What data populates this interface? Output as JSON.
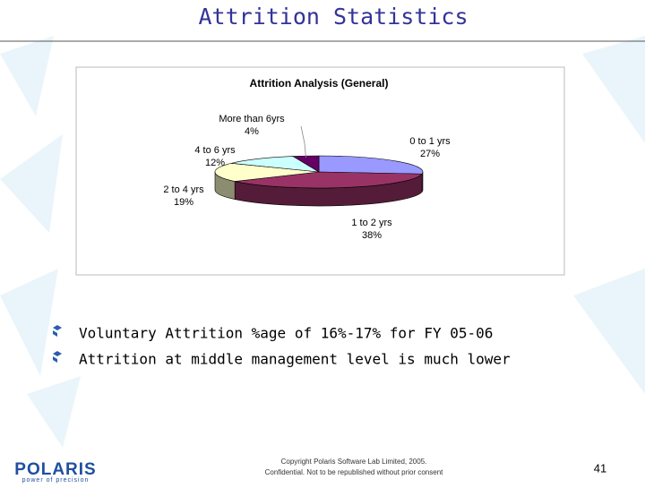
{
  "slide": {
    "title": "Attrition Statistics",
    "bullets": [
      "Voluntary Attrition %age of 16%-17% for FY 05-06",
      "Attrition at middle management level is much lower"
    ],
    "footer": [
      "Copyright Polaris Software Lab Limited, 2005.",
      "Confidential. Not to be republished without prior consent"
    ],
    "page_number": "41",
    "logo": "POLARIS",
    "tagline": "power of precision"
  },
  "chart_data": {
    "type": "pie",
    "title": "Attrition Analysis (General)",
    "categories": [
      "0 to 1 yrs",
      "1 to 2 yrs",
      "2 to 4 yrs",
      "4 to 6 yrs",
      "More than 6yrs"
    ],
    "values": [
      27,
      38,
      19,
      12,
      4
    ],
    "value_labels": [
      "27%",
      "38%",
      "19%",
      "12%",
      "4%"
    ],
    "colors": [
      "#9999ff",
      "#993366",
      "#ffffcc",
      "#ccffff",
      "#660066"
    ]
  }
}
